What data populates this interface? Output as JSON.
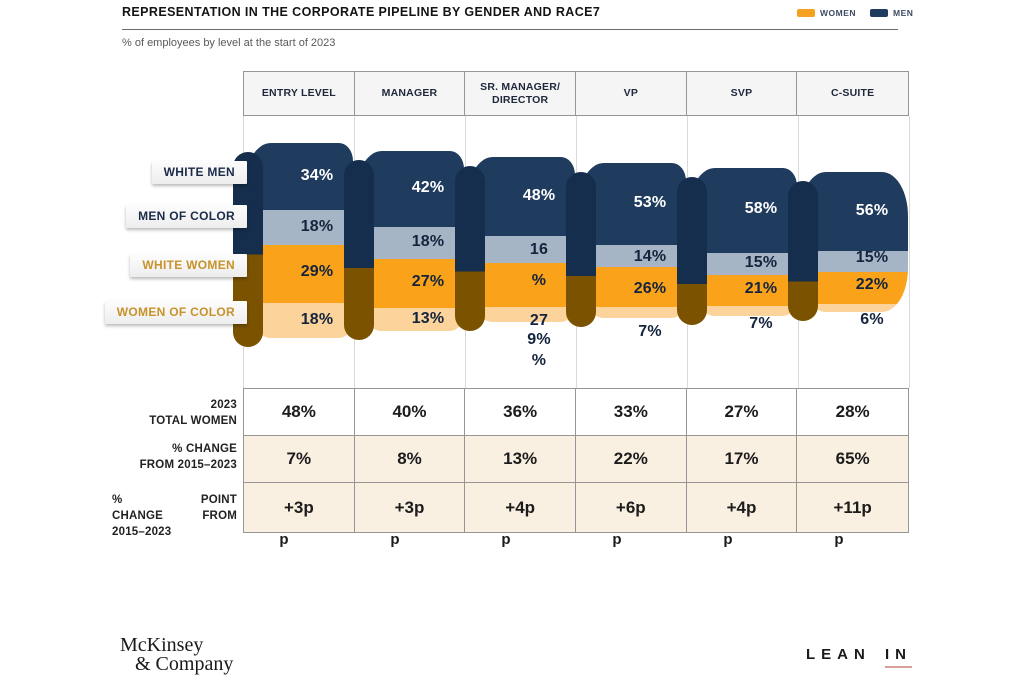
{
  "title": "REPRESENTATION IN THE CORPORATE PIPELINE BY GENDER AND RACE7",
  "subtitle": "% of employees by level at the start of 2023",
  "legend": [
    {
      "label": "WOMEN",
      "color": "#f5a01f"
    },
    {
      "label": "MEN",
      "color": "#1f3b5e"
    }
  ],
  "colors": {
    "navy": "#1f3b5e",
    "navy_dark": "#152e4d",
    "gray_blue": "#a6b5c6",
    "orange": "#f9a21a",
    "peach": "#fcd39b",
    "brown": "#7a5200",
    "summary_peach": "#faf0e2",
    "white": "#ffffff",
    "gold_text": "#c8922a",
    "leanin_underline": "#d9a09a"
  },
  "chart_data": {
    "type": "bar",
    "variant": "stacked-funnel-pipeline",
    "title": "REPRESENTATION IN THE CORPORATE PIPELINE BY GENDER AND RACE7",
    "subtitle": "% of employees by level at the start of 2023",
    "legend_entries": [
      "WOMEN",
      "MEN"
    ],
    "categories": [
      "ENTRY LEVEL",
      "MANAGER",
      "SR. MANAGER/ DIRECTOR",
      "VP",
      "SVP",
      "C-SUITE"
    ],
    "series": [
      {
        "name": "WHITE MEN",
        "color": "#1f3b5e",
        "unit": "%",
        "values": [
          34,
          42,
          48,
          53,
          58,
          56
        ]
      },
      {
        "name": "MEN OF COLOR",
        "color": "#a6b5c6",
        "unit": "%",
        "values": [
          18,
          18,
          16,
          14,
          15,
          15
        ]
      },
      {
        "name": "WHITE WOMEN",
        "color": "#f9a21a",
        "unit": "%",
        "values": [
          29,
          27,
          27,
          26,
          21,
          22
        ]
      },
      {
        "name": "WOMEN OF COLOR",
        "color": "#fcd39b",
        "unit": "%",
        "values": [
          18,
          13,
          9,
          7,
          7,
          6
        ]
      }
    ],
    "row_ribbons": [
      {
        "label": "WHITE MEN",
        "group": "men"
      },
      {
        "label": "MEN OF COLOR",
        "group": "men"
      },
      {
        "label": "WHITE WOMEN",
        "group": "women"
      },
      {
        "label": "WOMEN OF COLOR",
        "group": "women"
      }
    ],
    "bar_label_lines": [
      [
        {
          "text": "34%",
          "tone": "light",
          "y": 176
        },
        {
          "text": "18%",
          "tone": "dark",
          "y": 227
        },
        {
          "text": "29%",
          "tone": "dark",
          "y": 272
        },
        {
          "text": "18%",
          "tone": "dark",
          "y": 320
        }
      ],
      [
        {
          "text": "42%",
          "tone": "light",
          "y": 188
        },
        {
          "text": "18%",
          "tone": "dark",
          "y": 242
        },
        {
          "text": "27%",
          "tone": "dark",
          "y": 282
        },
        {
          "text": "13%",
          "tone": "dark",
          "y": 319
        }
      ],
      [
        {
          "text": "48%",
          "tone": "light",
          "y": 196
        },
        {
          "text": "16",
          "tone": "dark",
          "y": 250
        },
        {
          "text": "%",
          "tone": "dark",
          "y": 281
        },
        {
          "text": "27",
          "tone": "dark",
          "y": 321
        },
        {
          "text": "9%",
          "tone": "dark",
          "y": 340
        },
        {
          "text": "%",
          "tone": "dark",
          "y": 361
        }
      ],
      [
        {
          "text": "53%",
          "tone": "light",
          "y": 203
        },
        {
          "text": "14%",
          "tone": "dark",
          "y": 257
        },
        {
          "text": "26%",
          "tone": "dark",
          "y": 289
        },
        {
          "text": "7%",
          "tone": "dark",
          "y": 332
        }
      ],
      [
        {
          "text": "58%",
          "tone": "light",
          "y": 209
        },
        {
          "text": "15%",
          "tone": "dark",
          "y": 263
        },
        {
          "text": "21%",
          "tone": "dark",
          "y": 289
        },
        {
          "text": "7%",
          "tone": "dark",
          "y": 324
        }
      ],
      [
        {
          "text": "56%",
          "tone": "light",
          "y": 211
        },
        {
          "text": "15%",
          "tone": "dark",
          "y": 258
        },
        {
          "text": "22%",
          "tone": "dark",
          "y": 285
        },
        {
          "text": "6%",
          "tone": "dark",
          "y": 320
        }
      ]
    ],
    "summary_rows": [
      {
        "label_lines": [
          "2023",
          "TOTAL WOMEN"
        ],
        "values": [
          "48%",
          "40%",
          "36%",
          "33%",
          "27%",
          "28%"
        ],
        "bg": "#ffffff",
        "justify": false
      },
      {
        "label_lines": [
          "% CHANGE",
          "FROM 2015–2023"
        ],
        "values": [
          "7%",
          "8%",
          "13%",
          "22%",
          "17%",
          "65%"
        ],
        "bg": "#faf0e2",
        "justify": false
      },
      {
        "label_lines": [
          "% POINT",
          "CHANGE FROM",
          "2015–2023"
        ],
        "values": [
          "+3p",
          "+3p",
          "+4p",
          "+6p",
          "+4p",
          "+11p"
        ],
        "bg": "#faf0e2",
        "justify": true
      }
    ],
    "point_change_full_values": [
      "+3pp",
      "+3pp",
      "+4pp",
      "+6pp",
      "+4pp",
      "+11pp"
    ],
    "overflow_row": [
      "p",
      "p",
      "p",
      "p",
      "p",
      "p"
    ]
  },
  "footer": {
    "mckinsey_line1": "McKinsey",
    "mckinsey_line2": "& Company",
    "leanin_word1": "LEAN",
    "leanin_word2": "IN"
  }
}
